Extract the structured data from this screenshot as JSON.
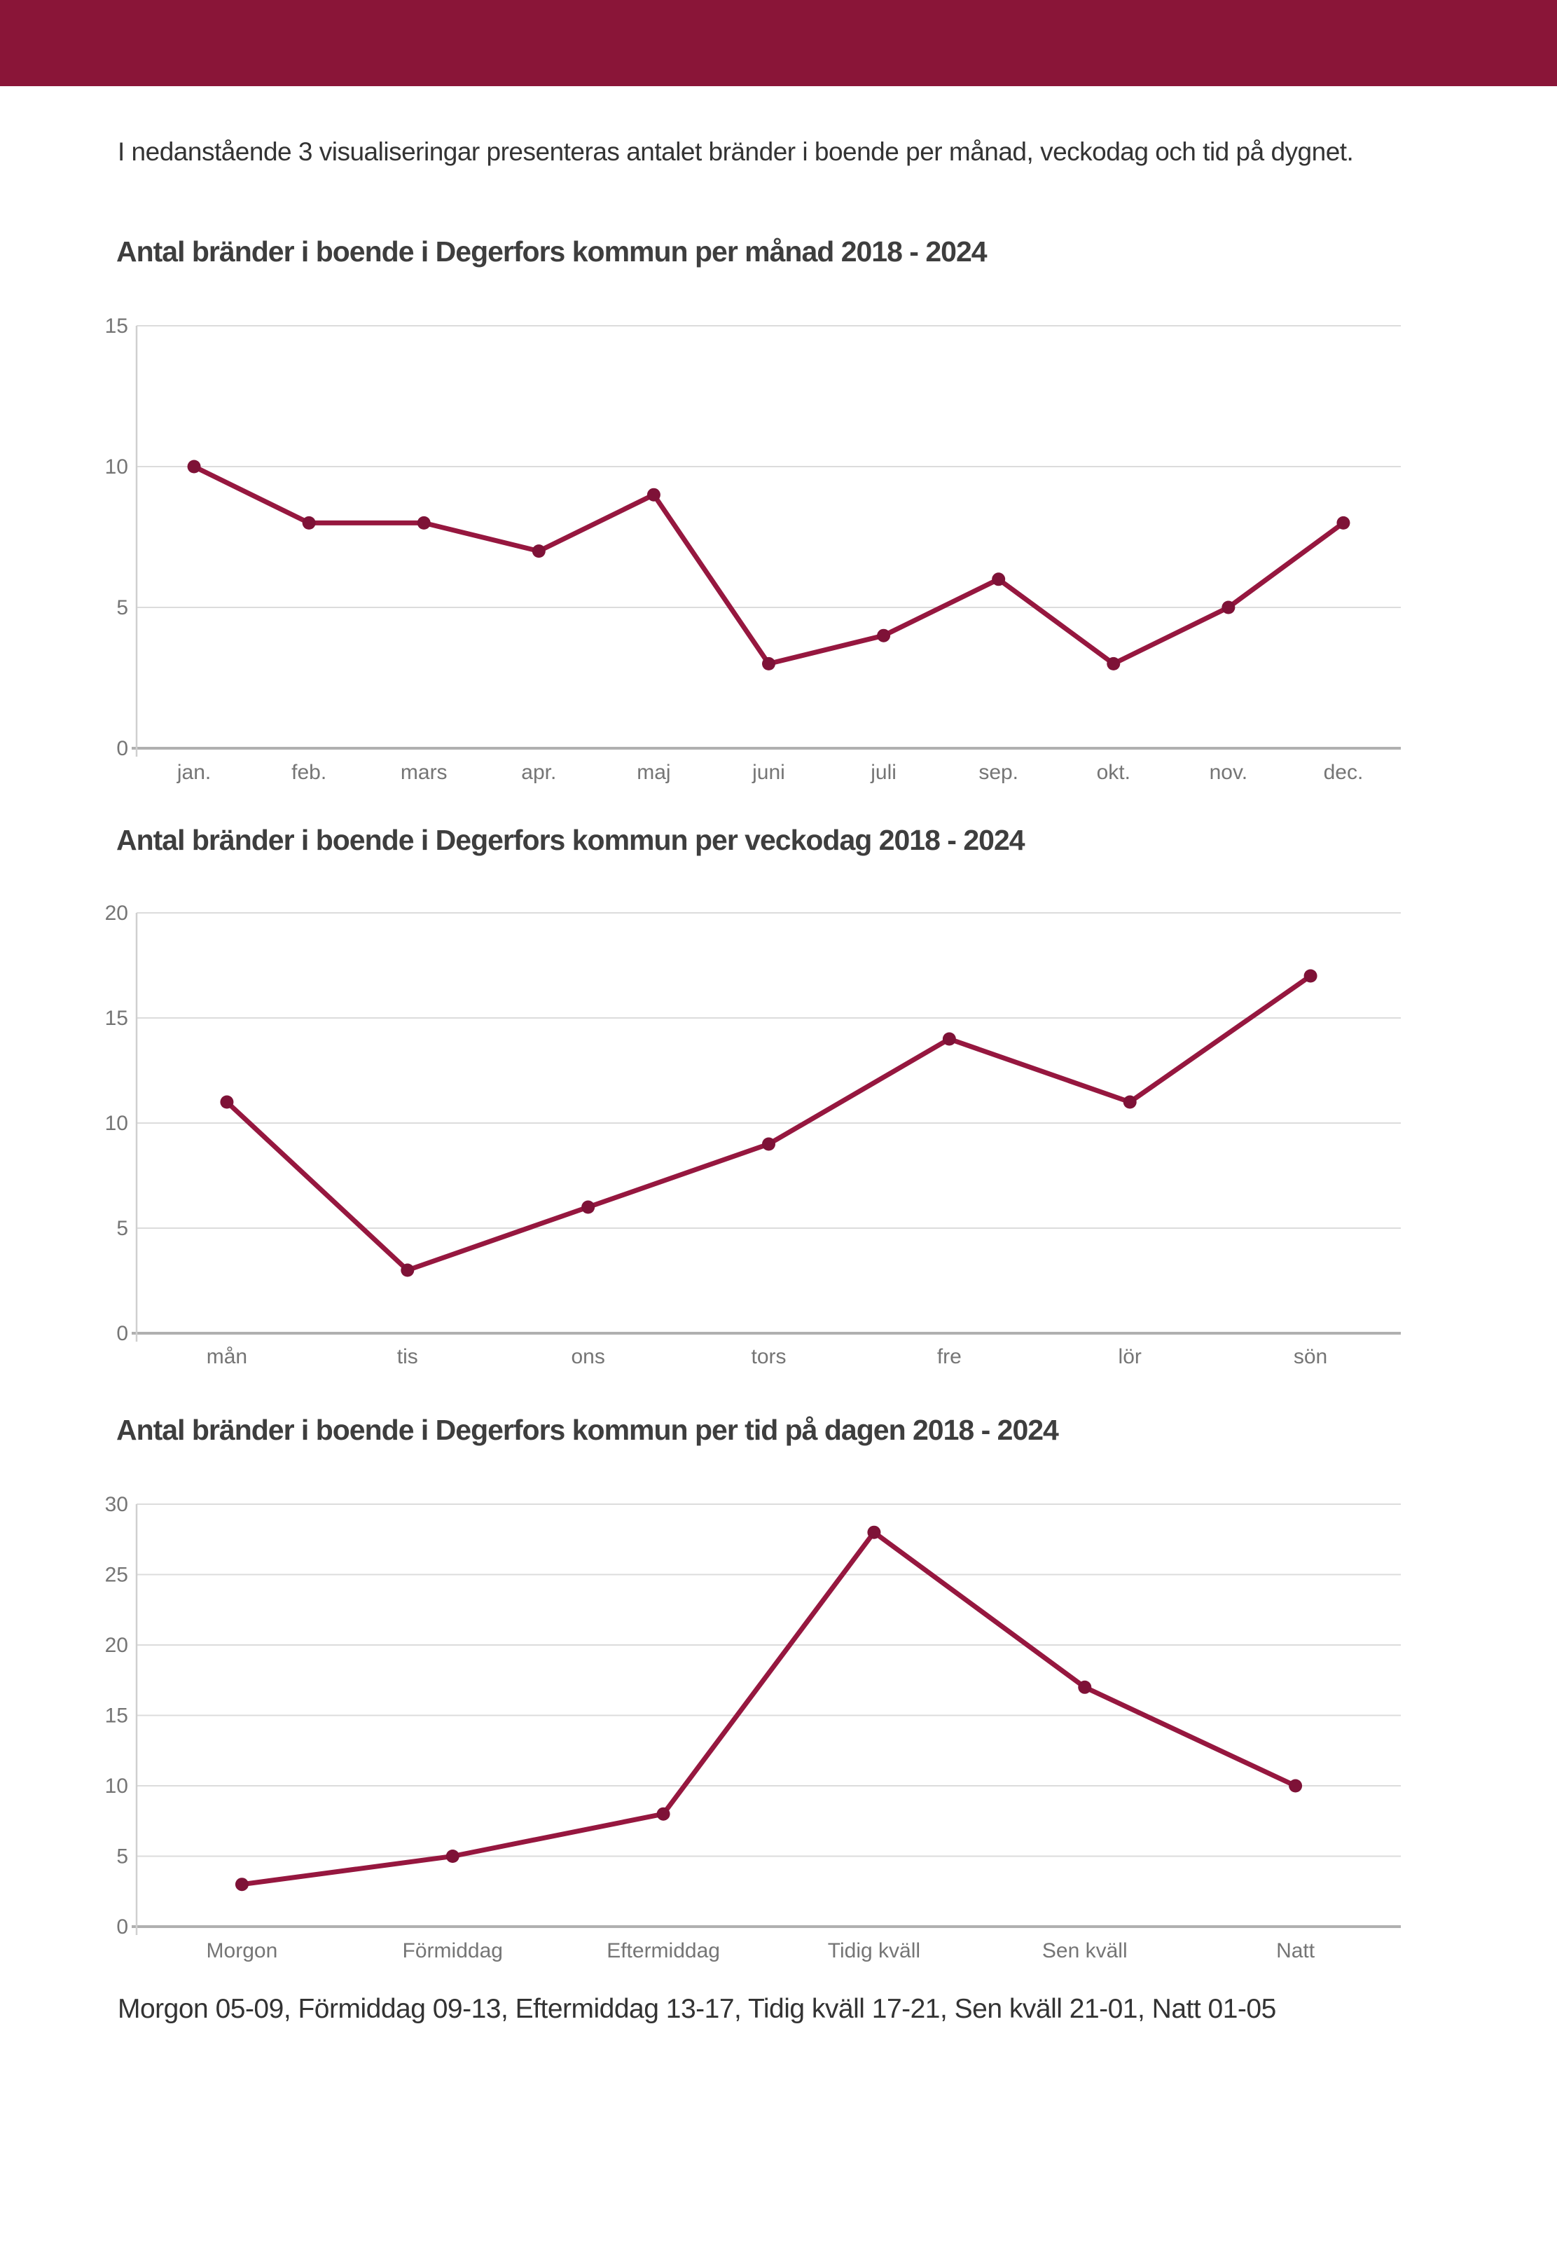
{
  "page": {
    "header_color": "#8A1538",
    "background_color": "#ffffff",
    "grid_color": "#dcdcdc",
    "axis_color": "#b0b0b0",
    "tick_label_color": "#757575"
  },
  "intro": "I nedanstående 3 visualiseringar presenteras antalet bränder i boende per månad, veckodag och tid på dygnet.",
  "footer": "Morgon 05-09, Förmiddag 09-13, Eftermiddag 13-17, Tidig kväll 17-21, Sen kväll 21-01, Natt 01-05",
  "chart_data": [
    {
      "type": "line",
      "title": "Antal bränder i boende i Degerfors kommun per månad 2018 - 2024",
      "categories": [
        "jan.",
        "feb.",
        "mars",
        "apr.",
        "maj",
        "juni",
        "juli",
        "sep.",
        "okt.",
        "nov.",
        "dec."
      ],
      "values": [
        10,
        8,
        8,
        7,
        9,
        3,
        4,
        6,
        3,
        5,
        8
      ],
      "ylim": [
        0,
        15
      ],
      "ytick_step": 5,
      "grid": true,
      "legend": false,
      "line_color": "#96173F",
      "point_color": "#7E1237"
    },
    {
      "type": "line",
      "title": "Antal bränder i boende i Degerfors kommun per veckodag 2018 - 2024",
      "categories": [
        "mån",
        "tis",
        "ons",
        "tors",
        "fre",
        "lör",
        "sön"
      ],
      "values": [
        11,
        3,
        6,
        9,
        14,
        11,
        17
      ],
      "ylim": [
        0,
        20
      ],
      "ytick_step": 5,
      "grid": true,
      "legend": false,
      "line_color": "#96173F",
      "point_color": "#7E1237"
    },
    {
      "type": "line",
      "title": "Antal bränder i boende i Degerfors kommun per tid på dagen 2018 - 2024",
      "categories": [
        "Morgon",
        "Förmiddag",
        "Eftermiddag",
        "Tidig kväll",
        "Sen kväll",
        "Natt"
      ],
      "values": [
        3,
        5,
        8,
        28,
        17,
        10
      ],
      "ylim": [
        0,
        30
      ],
      "ytick_step": 5,
      "grid": true,
      "legend": false,
      "line_color": "#96173F",
      "point_color": "#7E1237"
    }
  ]
}
